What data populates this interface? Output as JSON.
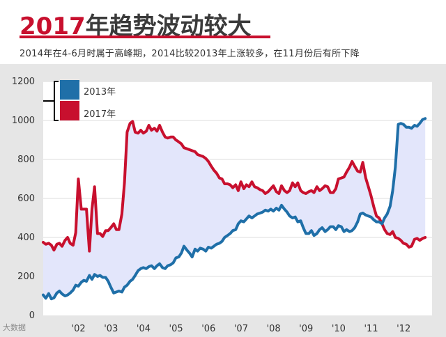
{
  "header": {
    "title_year": "2017",
    "title_rest": "年趋势波动较大",
    "subtitle": "2014年在4-6月时属于高峰期，2014比较2013年上涨较多，在11月份后有所下降"
  },
  "colors": {
    "series_2013": "#1f6fa8",
    "series_2017": "#c8102e",
    "fill_between": "#e3e6fb",
    "plot_bg": "#ffffff",
    "outer_bg": "#e6e6e6",
    "grid": "#dcdcdc"
  },
  "watermark": "大数据",
  "chart_data": {
    "type": "line",
    "title": "2017年趋势波动较大",
    "xlabel": "",
    "ylabel": "",
    "ylim": [
      0,
      1200
    ],
    "yticks": [
      "0",
      "200",
      "400",
      "600",
      "800",
      "1000",
      "1200"
    ],
    "xlim": [
      2001,
      2012.96
    ],
    "xticks": [
      {
        "x": 2002,
        "label": "'02"
      },
      {
        "x": 2003,
        "label": "'03"
      },
      {
        "x": 2004,
        "label": "'04"
      },
      {
        "x": 2005,
        "label": "'05"
      },
      {
        "x": 2006,
        "label": "'06"
      },
      {
        "x": 2007,
        "label": "'07"
      },
      {
        "x": 2008,
        "label": "'08"
      },
      {
        "x": 2009,
        "label": "'09"
      },
      {
        "x": 2010,
        "label": "'10"
      },
      {
        "x": 2011,
        "label": "'11"
      },
      {
        "x": 2012,
        "label": "'12"
      }
    ],
    "grid": true,
    "legend_position": "top-left",
    "series": [
      {
        "name": "2013年",
        "points": [
          [
            2001.0,
            105
          ],
          [
            2001.08,
            88
          ],
          [
            2001.17,
            112
          ],
          [
            2001.25,
            85
          ],
          [
            2001.33,
            90
          ],
          [
            2001.42,
            115
          ],
          [
            2001.5,
            125
          ],
          [
            2001.58,
            110
          ],
          [
            2001.67,
            100
          ],
          [
            2001.75,
            105
          ],
          [
            2001.83,
            115
          ],
          [
            2001.92,
            130
          ],
          [
            2002.0,
            155
          ],
          [
            2002.08,
            150
          ],
          [
            2002.17,
            170
          ],
          [
            2002.25,
            180
          ],
          [
            2002.33,
            175
          ],
          [
            2002.42,
            205
          ],
          [
            2002.5,
            185
          ],
          [
            2002.58,
            210
          ],
          [
            2002.67,
            200
          ],
          [
            2002.75,
            205
          ],
          [
            2002.83,
            195
          ],
          [
            2002.92,
            195
          ],
          [
            2003.0,
            175
          ],
          [
            2003.08,
            145
          ],
          [
            2003.17,
            115
          ],
          [
            2003.25,
            120
          ],
          [
            2003.33,
            125
          ],
          [
            2003.42,
            120
          ],
          [
            2003.5,
            145
          ],
          [
            2003.58,
            155
          ],
          [
            2003.67,
            175
          ],
          [
            2003.75,
            185
          ],
          [
            2003.83,
            205
          ],
          [
            2003.92,
            230
          ],
          [
            2004.0,
            240
          ],
          [
            2004.08,
            245
          ],
          [
            2004.17,
            240
          ],
          [
            2004.25,
            250
          ],
          [
            2004.33,
            255
          ],
          [
            2004.42,
            240
          ],
          [
            2004.5,
            255
          ],
          [
            2004.58,
            265
          ],
          [
            2004.67,
            245
          ],
          [
            2004.75,
            240
          ],
          [
            2004.83,
            255
          ],
          [
            2004.92,
            260
          ],
          [
            2005.0,
            270
          ],
          [
            2005.08,
            295
          ],
          [
            2005.17,
            300
          ],
          [
            2005.25,
            320
          ],
          [
            2005.33,
            355
          ],
          [
            2005.42,
            335
          ],
          [
            2005.5,
            320
          ],
          [
            2005.58,
            300
          ],
          [
            2005.67,
            340
          ],
          [
            2005.75,
            330
          ],
          [
            2005.83,
            345
          ],
          [
            2005.92,
            340
          ],
          [
            2006.0,
            330
          ],
          [
            2006.08,
            350
          ],
          [
            2006.17,
            345
          ],
          [
            2006.25,
            355
          ],
          [
            2006.33,
            365
          ],
          [
            2006.42,
            370
          ],
          [
            2006.5,
            380
          ],
          [
            2006.58,
            400
          ],
          [
            2006.67,
            410
          ],
          [
            2006.75,
            420
          ],
          [
            2006.83,
            435
          ],
          [
            2006.92,
            440
          ],
          [
            2007.0,
            470
          ],
          [
            2007.08,
            485
          ],
          [
            2007.17,
            480
          ],
          [
            2007.25,
            495
          ],
          [
            2007.33,
            510
          ],
          [
            2007.42,
            500
          ],
          [
            2007.5,
            510
          ],
          [
            2007.58,
            520
          ],
          [
            2007.67,
            525
          ],
          [
            2007.75,
            530
          ],
          [
            2007.83,
            540
          ],
          [
            2007.92,
            535
          ],
          [
            2008.0,
            545
          ],
          [
            2008.08,
            535
          ],
          [
            2008.17,
            550
          ],
          [
            2008.25,
            540
          ],
          [
            2008.33,
            565
          ],
          [
            2008.42,
            545
          ],
          [
            2008.5,
            530
          ],
          [
            2008.58,
            510
          ],
          [
            2008.67,
            500
          ],
          [
            2008.75,
            505
          ],
          [
            2008.83,
            480
          ],
          [
            2008.92,
            485
          ],
          [
            2009.0,
            450
          ],
          [
            2009.08,
            420
          ],
          [
            2009.17,
            420
          ],
          [
            2009.25,
            435
          ],
          [
            2009.33,
            410
          ],
          [
            2009.42,
            420
          ],
          [
            2009.5,
            440
          ],
          [
            2009.58,
            450
          ],
          [
            2009.67,
            430
          ],
          [
            2009.75,
            440
          ],
          [
            2009.83,
            455
          ],
          [
            2009.92,
            455
          ],
          [
            2010.0,
            440
          ],
          [
            2010.08,
            460
          ],
          [
            2010.17,
            455
          ],
          [
            2010.25,
            430
          ],
          [
            2010.33,
            440
          ],
          [
            2010.42,
            430
          ],
          [
            2010.5,
            435
          ],
          [
            2010.58,
            450
          ],
          [
            2010.67,
            480
          ],
          [
            2010.75,
            520
          ],
          [
            2010.83,
            525
          ],
          [
            2010.92,
            515
          ],
          [
            2011.0,
            510
          ],
          [
            2011.08,
            505
          ],
          [
            2011.17,
            490
          ],
          [
            2011.25,
            480
          ],
          [
            2011.33,
            480
          ],
          [
            2011.42,
            470
          ],
          [
            2011.5,
            500
          ],
          [
            2011.58,
            520
          ],
          [
            2011.67,
            560
          ],
          [
            2011.75,
            640
          ],
          [
            2011.83,
            760
          ],
          [
            2011.92,
            980
          ],
          [
            2012.0,
            985
          ],
          [
            2012.08,
            980
          ],
          [
            2012.17,
            965
          ],
          [
            2012.25,
            965
          ],
          [
            2012.33,
            960
          ],
          [
            2012.42,
            975
          ],
          [
            2012.5,
            970
          ],
          [
            2012.58,
            985
          ],
          [
            2012.67,
            1005
          ],
          [
            2012.75,
            1010
          ]
        ]
      },
      {
        "name": "2017年",
        "points": [
          [
            2001.0,
            375
          ],
          [
            2001.08,
            365
          ],
          [
            2001.17,
            370
          ],
          [
            2001.25,
            360
          ],
          [
            2001.33,
            335
          ],
          [
            2001.42,
            365
          ],
          [
            2001.5,
            370
          ],
          [
            2001.58,
            355
          ],
          [
            2001.67,
            385
          ],
          [
            2001.75,
            400
          ],
          [
            2001.83,
            370
          ],
          [
            2001.92,
            360
          ],
          [
            2002.0,
            425
          ],
          [
            2002.08,
            700
          ],
          [
            2002.17,
            545
          ],
          [
            2002.25,
            545
          ],
          [
            2002.33,
            545
          ],
          [
            2002.42,
            330
          ],
          [
            2002.5,
            545
          ],
          [
            2002.58,
            660
          ],
          [
            2002.67,
            420
          ],
          [
            2002.75,
            420
          ],
          [
            2002.83,
            405
          ],
          [
            2002.92,
            435
          ],
          [
            2003.0,
            435
          ],
          [
            2003.08,
            450
          ],
          [
            2003.17,
            470
          ],
          [
            2003.25,
            440
          ],
          [
            2003.33,
            440
          ],
          [
            2003.42,
            520
          ],
          [
            2003.5,
            680
          ],
          [
            2003.58,
            940
          ],
          [
            2003.67,
            985
          ],
          [
            2003.75,
            995
          ],
          [
            2003.83,
            940
          ],
          [
            2003.92,
            935
          ],
          [
            2004.0,
            950
          ],
          [
            2004.08,
            935
          ],
          [
            2004.17,
            945
          ],
          [
            2004.25,
            975
          ],
          [
            2004.33,
            950
          ],
          [
            2004.42,
            960
          ],
          [
            2004.5,
            945
          ],
          [
            2004.58,
            975
          ],
          [
            2004.67,
            940
          ],
          [
            2004.75,
            915
          ],
          [
            2004.83,
            910
          ],
          [
            2004.92,
            915
          ],
          [
            2005.0,
            915
          ],
          [
            2005.08,
            900
          ],
          [
            2005.17,
            890
          ],
          [
            2005.25,
            880
          ],
          [
            2005.33,
            860
          ],
          [
            2005.42,
            855
          ],
          [
            2005.5,
            850
          ],
          [
            2005.58,
            845
          ],
          [
            2005.67,
            840
          ],
          [
            2005.75,
            825
          ],
          [
            2005.83,
            820
          ],
          [
            2005.92,
            815
          ],
          [
            2006.0,
            805
          ],
          [
            2006.08,
            790
          ],
          [
            2006.17,
            765
          ],
          [
            2006.25,
            745
          ],
          [
            2006.33,
            730
          ],
          [
            2006.42,
            705
          ],
          [
            2006.5,
            700
          ],
          [
            2006.58,
            675
          ],
          [
            2006.67,
            675
          ],
          [
            2006.75,
            670
          ],
          [
            2006.83,
            655
          ],
          [
            2006.92,
            670
          ],
          [
            2007.0,
            640
          ],
          [
            2007.08,
            685
          ],
          [
            2007.17,
            650
          ],
          [
            2007.25,
            670
          ],
          [
            2007.33,
            660
          ],
          [
            2007.42,
            685
          ],
          [
            2007.5,
            660
          ],
          [
            2007.58,
            655
          ],
          [
            2007.67,
            645
          ],
          [
            2007.75,
            640
          ],
          [
            2007.83,
            625
          ],
          [
            2007.92,
            635
          ],
          [
            2008.0,
            650
          ],
          [
            2008.08,
            665
          ],
          [
            2008.17,
            635
          ],
          [
            2008.25,
            625
          ],
          [
            2008.33,
            665
          ],
          [
            2008.42,
            640
          ],
          [
            2008.5,
            630
          ],
          [
            2008.58,
            640
          ],
          [
            2008.67,
            680
          ],
          [
            2008.75,
            660
          ],
          [
            2008.83,
            680
          ],
          [
            2008.92,
            640
          ],
          [
            2009.0,
            630
          ],
          [
            2009.08,
            625
          ],
          [
            2009.17,
            635
          ],
          [
            2009.25,
            640
          ],
          [
            2009.33,
            630
          ],
          [
            2009.42,
            660
          ],
          [
            2009.5,
            640
          ],
          [
            2009.58,
            650
          ],
          [
            2009.67,
            665
          ],
          [
            2009.75,
            660
          ],
          [
            2009.83,
            630
          ],
          [
            2009.92,
            630
          ],
          [
            2010.0,
            650
          ],
          [
            2010.08,
            700
          ],
          [
            2010.17,
            705
          ],
          [
            2010.25,
            710
          ],
          [
            2010.33,
            735
          ],
          [
            2010.42,
            760
          ],
          [
            2010.5,
            790
          ],
          [
            2010.58,
            765
          ],
          [
            2010.67,
            740
          ],
          [
            2010.75,
            735
          ],
          [
            2010.83,
            785
          ],
          [
            2010.92,
            705
          ],
          [
            2011.0,
            660
          ],
          [
            2011.08,
            615
          ],
          [
            2011.17,
            555
          ],
          [
            2011.25,
            510
          ],
          [
            2011.33,
            500
          ],
          [
            2011.42,
            470
          ],
          [
            2011.5,
            440
          ],
          [
            2011.58,
            420
          ],
          [
            2011.67,
            415
          ],
          [
            2011.75,
            430
          ],
          [
            2011.83,
            400
          ],
          [
            2011.92,
            395
          ],
          [
            2012.0,
            385
          ],
          [
            2012.08,
            370
          ],
          [
            2012.17,
            365
          ],
          [
            2012.25,
            350
          ],
          [
            2012.33,
            355
          ],
          [
            2012.42,
            390
          ],
          [
            2012.5,
            395
          ],
          [
            2012.58,
            385
          ],
          [
            2012.67,
            395
          ],
          [
            2012.75,
            400
          ]
        ]
      }
    ]
  }
}
